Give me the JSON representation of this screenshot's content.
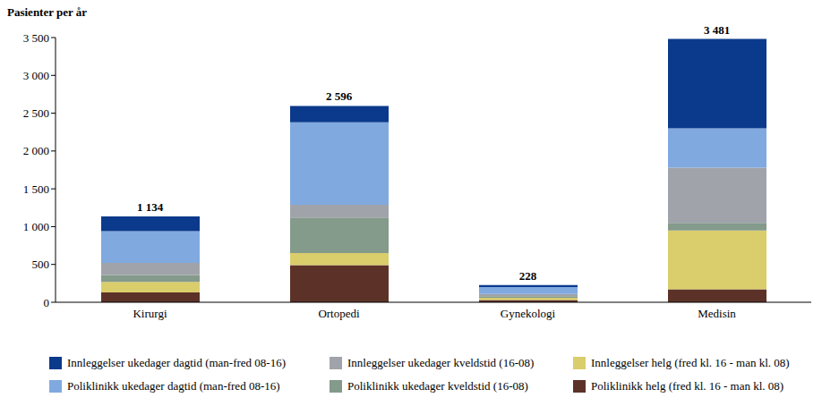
{
  "chart_data": {
    "type": "bar",
    "stacked": true,
    "y_label": "Pasienter per år",
    "categories": [
      "Kirurgi",
      "Ortopedi",
      "Gynekologi",
      "Medisin"
    ],
    "series": [
      {
        "name": "Poliklinikk helg (fred kl. 16 - man kl. 08)",
        "color": "#5c3228",
        "values": [
          130,
          490,
          30,
          170
        ]
      },
      {
        "name": "Innleggelser helg (fred kl. 16 - man kl. 08)",
        "color": "#dacd6c",
        "values": [
          140,
          160,
          30,
          780
        ]
      },
      {
        "name": "Poliklinikk ukedager kveldstid (16-08)",
        "color": "#849a8b",
        "values": [
          90,
          470,
          20,
          100
        ]
      },
      {
        "name": "Innleggelser ukedager kveldstid (16-08)",
        "color": "#a0a4aa",
        "values": [
          160,
          170,
          30,
          730
        ]
      },
      {
        "name": "Poliklinikk ukedager dagtid (man-fred 08-16)",
        "color": "#80a9e0",
        "values": [
          420,
          1090,
          90,
          520
        ]
      },
      {
        "name": "Innleggelser ukedager dagtid (man-fred 08-16)",
        "color": "#0b3a8c",
        "values": [
          194,
          216,
          28,
          1181
        ]
      }
    ],
    "totals": [
      1134,
      2596,
      228,
      3481
    ],
    "total_labels": [
      "1 134",
      "2 596",
      "228",
      "3 481"
    ],
    "ylim": [
      0,
      3500
    ],
    "yticks": [
      0,
      500,
      {
        "value": 1000,
        "label": "1 000"
      },
      {
        "value": 1500,
        "label": "1 500"
      },
      {
        "value": 2000,
        "label": "2 000"
      },
      {
        "value": 2500,
        "label": "2 500"
      },
      {
        "value": 3000,
        "label": "3 000"
      },
      {
        "value": 3500,
        "label": "3 500"
      }
    ],
    "grid": false,
    "legend": "bottom"
  }
}
